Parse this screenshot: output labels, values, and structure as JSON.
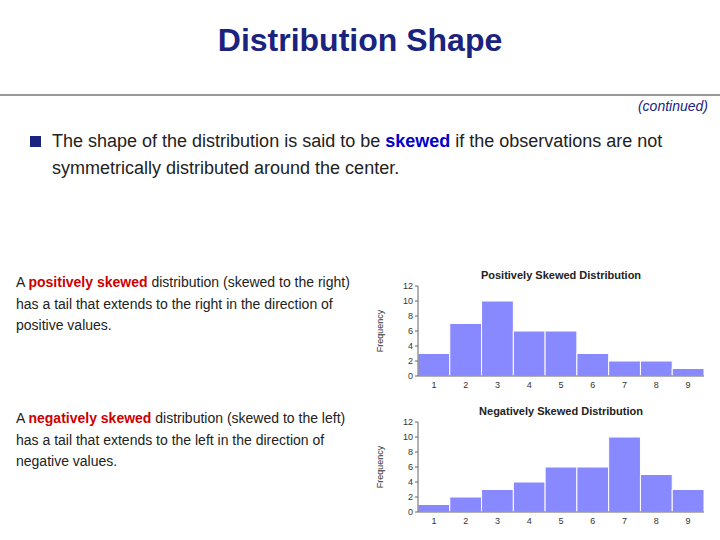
{
  "title": "Distribution Shape",
  "subtitle": "(continued)",
  "annotations": [
    [
      "The shape of the distribution is said to be ",
      {
        "text": "skewed",
        "color": "#0000cc"
      },
      " if the observations are not symmetrically distributed around the center."
    ],
    [
      "A ",
      {
        "text": "positively skewed",
        "color": "#cc0000"
      },
      " distribution (skewed to the right) has a tail that extends to the right in the direction of positive values."
    ],
    [
      "A ",
      {
        "text": "negatively skewed",
        "color": "#cc0000"
      },
      " distribution (skewed to the left) has a tail that extends to the left in the direction of negative values."
    ]
  ],
  "chart_data": [
    {
      "type": "bar",
      "title": "Positively Skewed Distribution",
      "categories": [
        "1",
        "2",
        "3",
        "4",
        "5",
        "6",
        "7",
        "8",
        "9"
      ],
      "values": [
        3,
        7,
        10,
        6,
        6,
        3,
        2,
        2,
        1
      ],
      "color": "#8888ff",
      "ylabel": "Frequency",
      "ylim": [
        0,
        12
      ],
      "yticks": [
        0,
        2,
        4,
        6,
        8,
        10,
        12
      ],
      "grid": false
    },
    {
      "type": "bar",
      "title": "Negatively Skewed Distribution",
      "categories": [
        "1",
        "2",
        "3",
        "4",
        "5",
        "6",
        "7",
        "8",
        "9"
      ],
      "values": [
        1,
        2,
        3,
        4,
        6,
        6,
        10,
        5,
        3
      ],
      "color": "#8888ff",
      "ylabel": "Frequency",
      "ylim": [
        0,
        12
      ],
      "yticks": [
        0,
        2,
        4,
        6,
        8,
        10,
        12
      ],
      "grid": false
    }
  ]
}
